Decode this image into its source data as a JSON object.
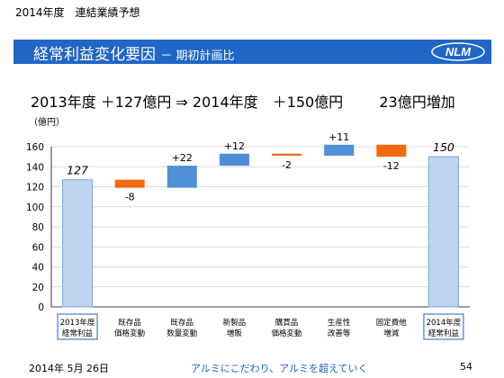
{
  "header": {
    "top_title": "2014年度　連結業績予想",
    "banner_title": "経常利益変化要因",
    "banner_subtitle": "－ 期初計画比",
    "logo_text": "NLM"
  },
  "summary": {
    "left": "2013年度 ＋127億円 ⇒ 2014年度　＋150億円",
    "right": "23億円増加"
  },
  "chart_data": {
    "type": "bar",
    "subtype": "waterfall",
    "unit_label": "（億円）",
    "ylim": [
      0,
      160
    ],
    "yticks": [
      0,
      20,
      40,
      60,
      80,
      100,
      120,
      140,
      160
    ],
    "grid": true,
    "categories": [
      {
        "line1": "2013年度",
        "line2": "経常利益",
        "boxed": true
      },
      {
        "line1": "既存品",
        "line2": "価格変動",
        "boxed": false
      },
      {
        "line1": "既存品",
        "line2": "数量変動",
        "boxed": false
      },
      {
        "line1": "新製品",
        "line2": "増販",
        "boxed": false
      },
      {
        "line1": "購買品",
        "line2": "価格変動",
        "boxed": false
      },
      {
        "line1": "生産性",
        "line2": "改善等",
        "boxed": false
      },
      {
        "line1": "固定費他",
        "line2": "増減",
        "boxed": false
      },
      {
        "line1": "2014年度",
        "line2": "経常利益",
        "boxed": true
      }
    ],
    "bars": [
      {
        "kind": "total",
        "start": 0,
        "end": 127,
        "label": "127"
      },
      {
        "kind": "decrease",
        "start": 127,
        "end": 119,
        "label": "-8"
      },
      {
        "kind": "increase",
        "start": 119,
        "end": 141,
        "label": "+22"
      },
      {
        "kind": "increase",
        "start": 141,
        "end": 153,
        "label": "+12"
      },
      {
        "kind": "decrease",
        "start": 153,
        "end": 151,
        "label": "-2"
      },
      {
        "kind": "increase",
        "start": 151,
        "end": 162,
        "label": "+11"
      },
      {
        "kind": "decrease",
        "start": 162,
        "end": 150,
        "label": "-12"
      },
      {
        "kind": "total",
        "start": 0,
        "end": 150,
        "label": "150"
      }
    ],
    "colors": {
      "total_fill": "#bed5f0",
      "total_stroke": "#7aa6d8",
      "increase": "#4f8fd6",
      "decrease": "#f26a10",
      "grid": "#d0d0d0",
      "label_box": "#1f5fbf"
    }
  },
  "footer": {
    "date": "2014年 5月 26日",
    "slogan": "アルミにこだわり、アルミを超えていく",
    "page": "54"
  }
}
